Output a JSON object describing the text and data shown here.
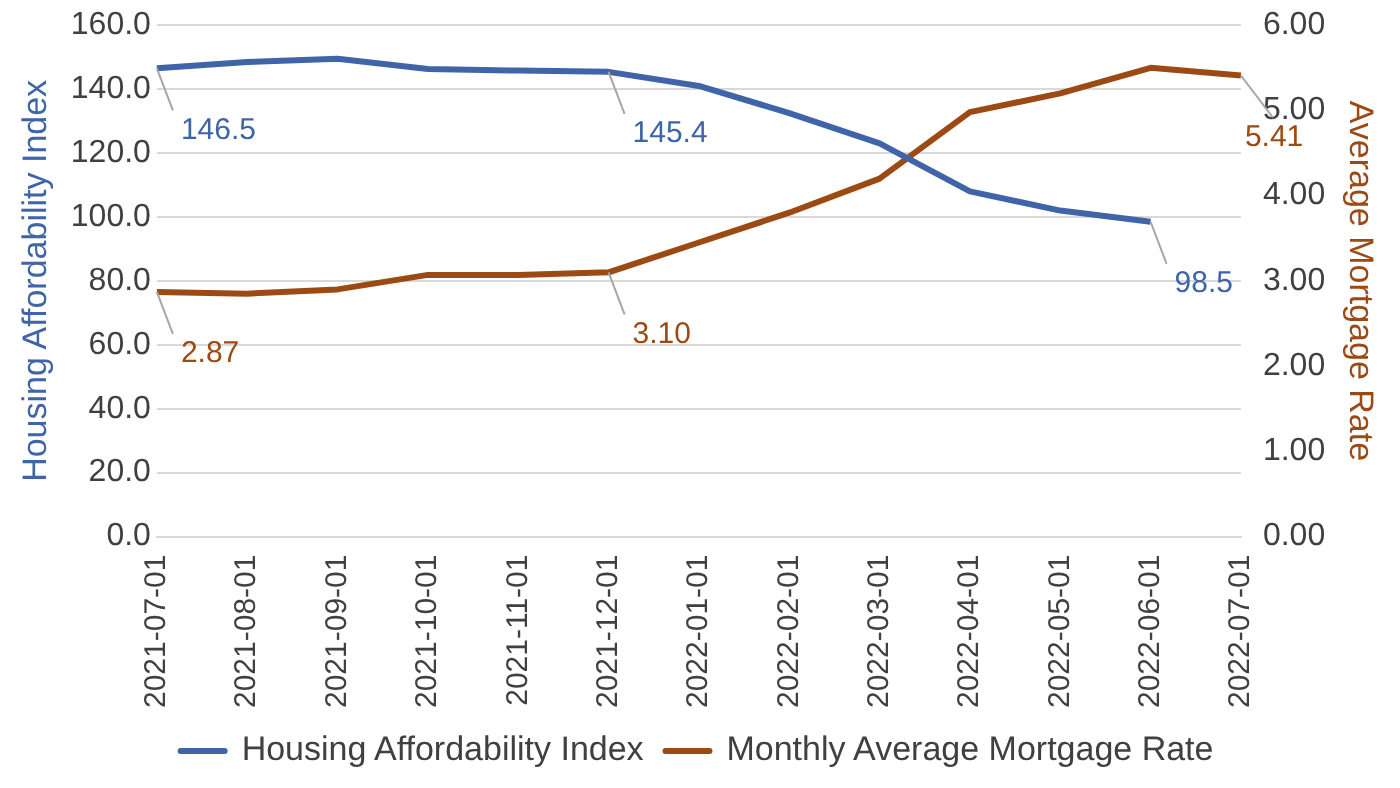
{
  "chart_data": {
    "type": "line",
    "categories": [
      "2021-07-01",
      "2021-08-01",
      "2021-09-01",
      "2021-10-01",
      "2021-11-01",
      "2021-12-01",
      "2022-01-01",
      "2022-02-01",
      "2022-03-01",
      "2022-04-01",
      "2022-05-01",
      "2022-06-01",
      "2022-07-01"
    ],
    "ylabel": "Housing Affordability Index",
    "y2label": "Average Mortgage Rate",
    "ylim": [
      0,
      160
    ],
    "yticks": [
      {
        "value": 0,
        "label": "0.0"
      },
      {
        "value": 20,
        "label": "20.0"
      },
      {
        "value": 40,
        "label": "40.0"
      },
      {
        "value": 60,
        "label": "60.0"
      },
      {
        "value": 80,
        "label": "80.0"
      },
      {
        "value": 100,
        "label": "100.0"
      },
      {
        "value": 120,
        "label": "120.0"
      },
      {
        "value": 140,
        "label": "140.0"
      },
      {
        "value": 160,
        "label": "160.0"
      }
    ],
    "y2lim": [
      0,
      6
    ],
    "y2ticks": [
      {
        "value": 0,
        "label": "0.00"
      },
      {
        "value": 1,
        "label": "1.00"
      },
      {
        "value": 2,
        "label": "2.00"
      },
      {
        "value": 3,
        "label": "3.00"
      },
      {
        "value": 4,
        "label": "4.00"
      },
      {
        "value": 5,
        "label": "5.00"
      },
      {
        "value": 6,
        "label": "6.00"
      }
    ],
    "grid": "y",
    "legend": "bottom",
    "marker": "none",
    "line_style": "solid",
    "series": [
      {
        "name": "Housing Affordability Index",
        "color": "#4064a8",
        "values": [
          146.5,
          148.5,
          149.5,
          146.3,
          145.8,
          145.4,
          141,
          132.5,
          123,
          108,
          102,
          98.5,
          null
        ],
        "value_labels": [
          "146.5",
          null,
          null,
          null,
          null,
          "145.4",
          null,
          null,
          null,
          null,
          null,
          "98.5",
          null
        ]
      },
      {
        "name": "Monthly Average Mortgage Rate",
        "color": "#9c4a14",
        "axis": "y2",
        "values": [
          2.87,
          2.85,
          2.9,
          3.07,
          3.07,
          3.1,
          3.45,
          3.8,
          4.2,
          4.98,
          5.2,
          5.5,
          5.41
        ],
        "value_labels": [
          "2.87",
          null,
          null,
          null,
          null,
          "3.10",
          null,
          null,
          null,
          null,
          null,
          null,
          "5.41"
        ]
      }
    ]
  }
}
